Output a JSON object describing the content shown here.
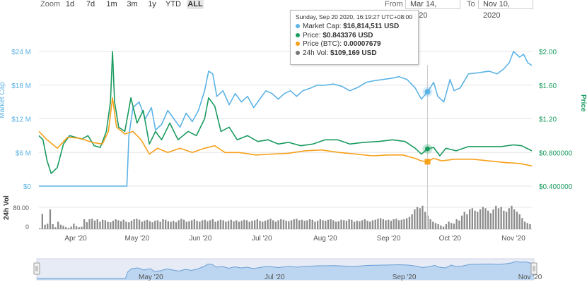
{
  "toolbar": {
    "zoom_label": "Zoom",
    "buttons": [
      "1d",
      "7d",
      "1m",
      "3m",
      "1y",
      "YTD",
      "ALL"
    ],
    "active": "ALL",
    "from_label": "From",
    "from_value": "Mar 14, 2020",
    "to_label": "To",
    "to_value": "Nov 10, 2020"
  },
  "tooltip": {
    "date": "Sunday, Sep 20 2020, 16:19:27 UTC+08:00",
    "rows": [
      {
        "label": "Market Cap:",
        "value": "$16,814,511 USD",
        "color": "#5cb3e6"
      },
      {
        "label": "Price:",
        "value": "$0.843376 USD",
        "color": "#1a9b5f"
      },
      {
        "label": "Price (BTC):",
        "value": "0.00007679",
        "color": "#f7a01a"
      },
      {
        "label": "24h Vol:",
        "value": "$109,169 USD",
        "color": "#777777"
      }
    ]
  },
  "colors": {
    "market_cap": "#5cb3e6",
    "price": "#1a9b5f",
    "price_btc": "#f7a01a",
    "volume": "#8c8c8c"
  },
  "chart_data": {
    "type": "line",
    "left_axis": {
      "label": "Market Cap",
      "ticks": [
        "$24 M",
        "$18 M",
        "$12 M",
        "$6 M",
        "$0"
      ],
      "range": [
        0,
        24000000
      ]
    },
    "right_axis": {
      "label": "Price",
      "ticks": [
        "$2.00",
        "$1.60",
        "$1.20",
        "$0.800000",
        "$0.400000"
      ],
      "range": [
        0.4,
        2.0
      ]
    },
    "volume_axis": {
      "label": "24h Vol",
      "ticks": [
        "80.00",
        "0"
      ]
    },
    "x_ticks": [
      "Apr '20",
      "May '20",
      "Jun '20",
      "Jul '20",
      "Aug '20",
      "Sep '20",
      "Oct '20",
      "Nov '20"
    ],
    "navigator_ticks": [
      "May '20",
      "Jul '20",
      "Sep '20",
      "Nov '20"
    ],
    "x_range": [
      "2020-03-14",
      "2020-11-10"
    ],
    "series": [
      {
        "name": "Market Cap",
        "axis": "left",
        "points": [
          [
            "2020-03-14",
            0
          ],
          [
            "2020-04-01",
            0
          ],
          [
            "2020-04-15",
            0
          ],
          [
            "2020-04-26",
            0
          ],
          [
            "2020-04-27",
            9000000
          ],
          [
            "2020-04-29",
            14000000
          ],
          [
            "2020-05-02",
            15000000
          ],
          [
            "2020-05-05",
            12000000
          ],
          [
            "2020-05-08",
            14000000
          ],
          [
            "2020-05-10",
            10000000
          ],
          [
            "2020-05-13",
            11000000
          ],
          [
            "2020-05-16",
            13500000
          ],
          [
            "2020-05-19",
            12000000
          ],
          [
            "2020-05-22",
            10500000
          ],
          [
            "2020-05-25",
            13000000
          ],
          [
            "2020-05-28",
            11500000
          ],
          [
            "2020-05-31",
            13500000
          ],
          [
            "2020-06-03",
            17000000
          ],
          [
            "2020-06-05",
            20500000
          ],
          [
            "2020-06-07",
            20000000
          ],
          [
            "2020-06-09",
            16000000
          ],
          [
            "2020-06-12",
            17000000
          ],
          [
            "2020-06-15",
            14500000
          ],
          [
            "2020-06-18",
            16500000
          ],
          [
            "2020-06-21",
            15000000
          ],
          [
            "2020-06-24",
            16000000
          ],
          [
            "2020-06-27",
            14000000
          ],
          [
            "2020-06-30",
            15500000
          ],
          [
            "2020-07-03",
            17000000
          ],
          [
            "2020-07-06",
            16500000
          ],
          [
            "2020-07-09",
            15500000
          ],
          [
            "2020-07-12",
            16500000
          ],
          [
            "2020-07-15",
            17000000
          ],
          [
            "2020-07-18",
            16000000
          ],
          [
            "2020-07-21",
            17000000
          ],
          [
            "2020-07-25",
            17500000
          ],
          [
            "2020-07-28",
            18000000
          ],
          [
            "2020-08-01",
            18000000
          ],
          [
            "2020-08-05",
            18200000
          ],
          [
            "2020-08-09",
            17800000
          ],
          [
            "2020-08-13",
            17000000
          ],
          [
            "2020-08-17",
            17600000
          ],
          [
            "2020-08-21",
            18500000
          ],
          [
            "2020-08-25",
            18800000
          ],
          [
            "2020-08-29",
            19000000
          ],
          [
            "2020-09-02",
            19200000
          ],
          [
            "2020-09-06",
            19500000
          ],
          [
            "2020-09-10",
            19000000
          ],
          [
            "2020-09-14",
            17500000
          ],
          [
            "2020-09-17",
            15500000
          ],
          [
            "2020-09-20",
            16800000
          ],
          [
            "2020-09-23",
            18500000
          ],
          [
            "2020-09-25",
            16000000
          ],
          [
            "2020-09-28",
            15000000
          ],
          [
            "2020-10-01",
            19000000
          ],
          [
            "2020-10-03",
            17000000
          ],
          [
            "2020-10-06",
            17500000
          ],
          [
            "2020-10-10",
            20000000
          ],
          [
            "2020-10-15",
            20200000
          ],
          [
            "2020-10-20",
            20500000
          ],
          [
            "2020-10-24",
            20000000
          ],
          [
            "2020-10-27",
            20800000
          ],
          [
            "2020-10-30",
            22000000
          ],
          [
            "2020-11-01",
            24000000
          ],
          [
            "2020-11-04",
            23000000
          ],
          [
            "2020-11-06",
            23500000
          ],
          [
            "2020-11-08",
            22000000
          ],
          [
            "2020-11-10",
            21500000
          ]
        ]
      },
      {
        "name": "Price",
        "axis": "right",
        "points": [
          [
            "2020-03-14",
            1.0
          ],
          [
            "2020-03-16",
            0.95
          ],
          [
            "2020-03-18",
            0.7
          ],
          [
            "2020-03-20",
            0.55
          ],
          [
            "2020-03-23",
            0.62
          ],
          [
            "2020-03-26",
            0.9
          ],
          [
            "2020-03-29",
            1.0
          ],
          [
            "2020-04-01",
            0.98
          ],
          [
            "2020-04-04",
            0.96
          ],
          [
            "2020-04-07",
            1.0
          ],
          [
            "2020-04-10",
            0.88
          ],
          [
            "2020-04-13",
            0.86
          ],
          [
            "2020-04-16",
            1.05
          ],
          [
            "2020-04-18",
            1.4
          ],
          [
            "2020-04-19",
            2.0
          ],
          [
            "2020-04-20",
            1.4
          ],
          [
            "2020-04-22",
            1.1
          ],
          [
            "2020-04-25",
            1.05
          ],
          [
            "2020-04-28",
            1.45
          ],
          [
            "2020-05-01",
            1.15
          ],
          [
            "2020-05-04",
            1.3
          ],
          [
            "2020-05-07",
            0.9
          ],
          [
            "2020-05-10",
            1.05
          ],
          [
            "2020-05-13",
            0.95
          ],
          [
            "2020-05-17",
            1.15
          ],
          [
            "2020-05-21",
            0.95
          ],
          [
            "2020-05-26",
            1.05
          ],
          [
            "2020-05-30",
            1.0
          ],
          [
            "2020-06-03",
            1.2
          ],
          [
            "2020-06-05",
            1.45
          ],
          [
            "2020-06-08",
            1.35
          ],
          [
            "2020-06-11",
            1.05
          ],
          [
            "2020-06-15",
            1.1
          ],
          [
            "2020-06-19",
            0.95
          ],
          [
            "2020-06-24",
            1.0
          ],
          [
            "2020-06-29",
            0.93
          ],
          [
            "2020-07-04",
            0.95
          ],
          [
            "2020-07-09",
            0.9
          ],
          [
            "2020-07-14",
            0.92
          ],
          [
            "2020-07-20",
            0.88
          ],
          [
            "2020-07-26",
            0.9
          ],
          [
            "2020-08-01",
            0.95
          ],
          [
            "2020-08-07",
            0.95
          ],
          [
            "2020-08-13",
            0.9
          ],
          [
            "2020-08-20",
            0.92
          ],
          [
            "2020-08-27",
            0.93
          ],
          [
            "2020-09-03",
            0.95
          ],
          [
            "2020-09-09",
            0.93
          ],
          [
            "2020-09-14",
            0.85
          ],
          [
            "2020-09-17",
            0.78
          ],
          [
            "2020-09-20",
            0.843376
          ],
          [
            "2020-09-23",
            0.86
          ],
          [
            "2020-09-26",
            0.76
          ],
          [
            "2020-09-29",
            0.85
          ],
          [
            "2020-10-04",
            0.82
          ],
          [
            "2020-10-10",
            0.87
          ],
          [
            "2020-10-18",
            0.87
          ],
          [
            "2020-10-26",
            0.87
          ],
          [
            "2020-11-01",
            0.89
          ],
          [
            "2020-11-05",
            0.88
          ],
          [
            "2020-11-10",
            0.82
          ]
        ]
      },
      {
        "name": "Price (BTC)",
        "axis": "right",
        "points": [
          [
            "2020-03-14",
            1.05
          ],
          [
            "2020-03-18",
            0.95
          ],
          [
            "2020-03-23",
            0.85
          ],
          [
            "2020-03-28",
            0.98
          ],
          [
            "2020-04-03",
            0.97
          ],
          [
            "2020-04-09",
            0.92
          ],
          [
            "2020-04-14",
            0.9
          ],
          [
            "2020-04-17",
            1.05
          ],
          [
            "2020-04-19",
            1.45
          ],
          [
            "2020-04-21",
            1.1
          ],
          [
            "2020-04-25",
            1.02
          ],
          [
            "2020-04-29",
            1.05
          ],
          [
            "2020-05-03",
            0.95
          ],
          [
            "2020-05-07",
            0.78
          ],
          [
            "2020-05-11",
            0.85
          ],
          [
            "2020-05-16",
            0.8
          ],
          [
            "2020-05-22",
            0.85
          ],
          [
            "2020-05-28",
            0.8
          ],
          [
            "2020-06-03",
            0.85
          ],
          [
            "2020-06-08",
            0.88
          ],
          [
            "2020-06-13",
            0.8
          ],
          [
            "2020-06-20",
            0.8
          ],
          [
            "2020-06-28",
            0.77
          ],
          [
            "2020-07-06",
            0.78
          ],
          [
            "2020-07-14",
            0.79
          ],
          [
            "2020-07-22",
            0.82
          ],
          [
            "2020-07-30",
            0.83
          ],
          [
            "2020-08-08",
            0.8
          ],
          [
            "2020-08-16",
            0.78
          ],
          [
            "2020-08-24",
            0.76
          ],
          [
            "2020-09-01",
            0.77
          ],
          [
            "2020-09-08",
            0.77
          ],
          [
            "2020-09-14",
            0.73
          ],
          [
            "2020-09-17",
            0.7
          ],
          [
            "2020-09-20",
            0.69
          ],
          [
            "2020-09-23",
            0.73
          ],
          [
            "2020-09-27",
            0.7
          ],
          [
            "2020-10-03",
            0.72
          ],
          [
            "2020-10-12",
            0.72
          ],
          [
            "2020-10-20",
            0.7
          ],
          [
            "2020-10-28",
            0.68
          ],
          [
            "2020-11-04",
            0.67
          ],
          [
            "2020-11-10",
            0.64
          ]
        ]
      }
    ],
    "volume": [
      3,
      62,
      18,
      22,
      80,
      20,
      8,
      30,
      18,
      14,
      8,
      5,
      10,
      22,
      12,
      8,
      10,
      40,
      28,
      40,
      42,
      35,
      40,
      30,
      38,
      36,
      30,
      28,
      34,
      40,
      36,
      32,
      38,
      30,
      28,
      34,
      40,
      42,
      38,
      30,
      35,
      38,
      32,
      28,
      34,
      36,
      30,
      40,
      38,
      32,
      30,
      34,
      28,
      36,
      42,
      38,
      30,
      32,
      36,
      40,
      34,
      30,
      36,
      38,
      32,
      36,
      40,
      30,
      34,
      38,
      36,
      30,
      34,
      38,
      32,
      36,
      30,
      34,
      38,
      36,
      30,
      34,
      36,
      40,
      34,
      30,
      34,
      38,
      42,
      36,
      30,
      36,
      40,
      38,
      34,
      32,
      36,
      40,
      42,
      36,
      38,
      34,
      36,
      40,
      38,
      30,
      34,
      40,
      36,
      34,
      38,
      40,
      36,
      30,
      32,
      38,
      36,
      34,
      40,
      38,
      30,
      34,
      32,
      36,
      40,
      34,
      30,
      36,
      38,
      42,
      44,
      40,
      36,
      38,
      34,
      40,
      42,
      36,
      38,
      40,
      44,
      50,
      60,
      80,
      90,
      85,
      95,
      70,
      55,
      40,
      30,
      25,
      20,
      15,
      10,
      20,
      30,
      25,
      22,
      40,
      35,
      55,
      70,
      60,
      80,
      85,
      75,
      70,
      80,
      90,
      85,
      75,
      65,
      80,
      95,
      85,
      90,
      75,
      70,
      85,
      95,
      80,
      70,
      60,
      45,
      30,
      25,
      20
    ]
  }
}
